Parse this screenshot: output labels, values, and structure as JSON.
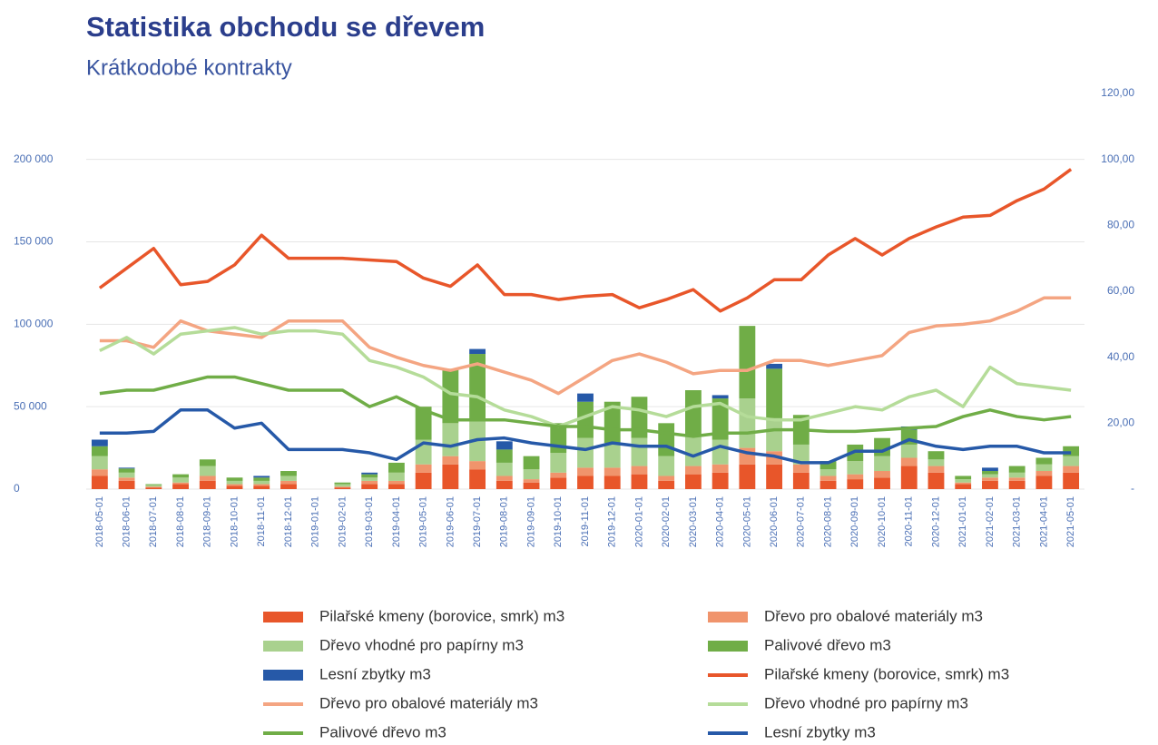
{
  "chart_data": {
    "type": "combo",
    "title": "Statistika obchodu se dřevem",
    "subtitle": "Krátkodobé kontrakty",
    "categories": [
      "2018-05-01",
      "2018-06-01",
      "2018-07-01",
      "2018-08-01",
      "2018-09-01",
      "2018-10-01",
      "2018-11-01",
      "2018-12-01",
      "2019-01-01",
      "2019-02-01",
      "2019-03-01",
      "2019-04-01",
      "2019-05-01",
      "2019-06-01",
      "2019-07-01",
      "2019-08-01",
      "2019-09-01",
      "2019-10-01",
      "2019-11-01",
      "2019-12-01",
      "2020-01-01",
      "2020-02-01",
      "2020-03-01",
      "2020-04-01",
      "2020-05-01",
      "2020-06-01",
      "2020-07-01",
      "2020-08-01",
      "2020-09-01",
      "2020-10-01",
      "2020-11-01",
      "2020-12-01",
      "2021-01-01",
      "2021-02-01",
      "2021-03-01",
      "2021-04-01",
      "2021-05-01"
    ],
    "ylim": [
      0,
      240000
    ],
    "yticks": [
      0,
      {
        "value": 50000,
        "label": "50 000"
      },
      {
        "value": 100000,
        "label": "100 000"
      },
      {
        "value": 150000,
        "label": "150 000"
      },
      {
        "value": 200000,
        "label": "200 000"
      }
    ],
    "y2lim": [
      0,
      120
    ],
    "y2ticks": [
      {
        "value": 0,
        "label": "-"
      },
      {
        "value": 20,
        "label": "20,00"
      },
      {
        "value": 40,
        "label": "40,00"
      },
      {
        "value": 60,
        "label": "60,00"
      },
      {
        "value": 80,
        "label": "80,00"
      },
      {
        "value": 100,
        "label": "100,00"
      },
      {
        "value": 120,
        "label": "120,00"
      }
    ],
    "grid": true,
    "series": [
      {
        "name": "Pilařské kmeny (borovice, smrk) m3",
        "type": "bar",
        "color": "#e8562a",
        "values": [
          8000,
          5000,
          1000,
          3000,
          5000,
          2000,
          2000,
          3000,
          0,
          1000,
          3000,
          3000,
          10000,
          15000,
          12000,
          5000,
          4000,
          7000,
          8000,
          8000,
          9000,
          5000,
          9000,
          10000,
          15000,
          15000,
          10000,
          5000,
          6000,
          7000,
          14000,
          10000,
          3000,
          5000,
          5000,
          8000,
          10000
        ]
      },
      {
        "name": "Dřevo pro obalové materiály m3",
        "type": "bar",
        "color": "#f0946c",
        "values": [
          4000,
          2000,
          500,
          1000,
          3000,
          1000,
          1000,
          2000,
          0,
          500,
          2000,
          2000,
          5000,
          5000,
          5000,
          3000,
          2000,
          3000,
          5000,
          5000,
          5000,
          3000,
          5000,
          5000,
          10000,
          8000,
          5000,
          3000,
          3000,
          4000,
          5000,
          4000,
          1000,
          2000,
          2000,
          3000,
          4000
        ]
      },
      {
        "name": "Dřevo vhodné pro papírny m3",
        "type": "bar",
        "color": "#a9d18e",
        "values": [
          8000,
          3000,
          1000,
          3000,
          6000,
          2000,
          2000,
          3000,
          0,
          1500,
          2000,
          5000,
          15000,
          20000,
          25000,
          8000,
          6000,
          12000,
          18000,
          15000,
          17000,
          12000,
          18000,
          15000,
          30000,
          20000,
          12000,
          4000,
          8000,
          9000,
          8000,
          4000,
          2000,
          2000,
          3000,
          4000,
          6000
        ]
      },
      {
        "name": "Palivové dřevo m3",
        "type": "bar",
        "color": "#70ad47",
        "values": [
          6000,
          2500,
          500,
          2000,
          4000,
          2000,
          2000,
          3000,
          0,
          1000,
          2000,
          6000,
          20000,
          33000,
          40000,
          8000,
          8000,
          18000,
          22000,
          25000,
          25000,
          20000,
          28000,
          25000,
          44000,
          30000,
          18000,
          5000,
          10000,
          11000,
          9000,
          5000,
          2000,
          2000,
          4000,
          4000,
          6000
        ]
      },
      {
        "name": "Lesní zbytky m3",
        "type": "bar",
        "color": "#2659a8",
        "values": [
          4000,
          500,
          0,
          0,
          0,
          0,
          1000,
          0,
          0,
          0,
          1000,
          0,
          0,
          0,
          3000,
          5000,
          0,
          0,
          5000,
          0,
          0,
          0,
          0,
          2000,
          0,
          3000,
          0,
          0,
          0,
          0,
          2000,
          0,
          0,
          2000,
          0,
          0,
          0
        ]
      },
      {
        "name": "Pilařské kmeny (borovice, smrk) m3",
        "type": "line",
        "axis": "y2",
        "color": "#e8562a",
        "values": [
          61,
          67,
          73,
          62,
          63,
          68,
          77,
          70,
          70,
          70,
          69.5,
          69,
          64,
          61.5,
          68,
          59,
          59,
          57.5,
          58.5,
          59,
          55,
          57.5,
          60.5,
          54,
          58,
          63.5,
          63.5,
          71,
          76,
          71,
          76,
          79.5,
          82.5,
          83,
          87.5,
          91,
          97
        ]
      },
      {
        "name": "Dřevo pro obalové materiály m3",
        "type": "line",
        "axis": "y2",
        "color": "#f4a582",
        "values": [
          45,
          45,
          43,
          51,
          48,
          47,
          46,
          51,
          51,
          51,
          43,
          40,
          37.5,
          36,
          38,
          35.5,
          33,
          29,
          34,
          39,
          41,
          38.5,
          35,
          36,
          36,
          39,
          39,
          37.5,
          39,
          40.5,
          47.5,
          49.5,
          50,
          51,
          54,
          58,
          58
        ]
      },
      {
        "name": "Dřevo vhodné pro papírny m3",
        "type": "line",
        "axis": "y2",
        "color": "#b5dc99",
        "values": [
          42,
          46,
          41,
          47,
          48,
          49,
          47,
          48,
          48,
          47,
          39,
          37,
          34,
          29,
          28,
          24,
          22,
          19,
          22,
          25,
          24,
          22,
          25,
          26,
          22,
          21,
          21,
          23,
          25,
          24,
          28,
          30,
          25,
          37,
          32,
          31,
          30
        ]
      },
      {
        "name": "Palivové dřevo m3",
        "type": "line",
        "axis": "y2",
        "color": "#70ad47",
        "values": [
          29,
          30,
          30,
          32,
          34,
          34,
          32,
          30,
          30,
          30,
          25,
          28,
          24,
          21,
          21,
          21,
          20,
          19,
          19,
          18,
          18,
          17,
          16,
          17,
          17,
          18,
          18,
          17.5,
          17.5,
          18,
          18.5,
          19,
          22,
          24,
          22,
          21,
          22
        ]
      },
      {
        "name": "Lesní zbytky m3",
        "type": "line",
        "axis": "y2",
        "color": "#2659a8",
        "values": [
          17,
          17,
          17.5,
          24,
          24,
          18.5,
          20,
          12,
          12,
          12,
          11,
          9,
          14,
          13,
          15,
          15.5,
          14,
          13,
          12,
          14,
          13,
          13,
          10,
          13,
          11,
          10,
          8,
          8,
          11.5,
          11.5,
          15,
          13,
          12,
          13,
          13,
          11,
          11
        ]
      }
    ]
  }
}
